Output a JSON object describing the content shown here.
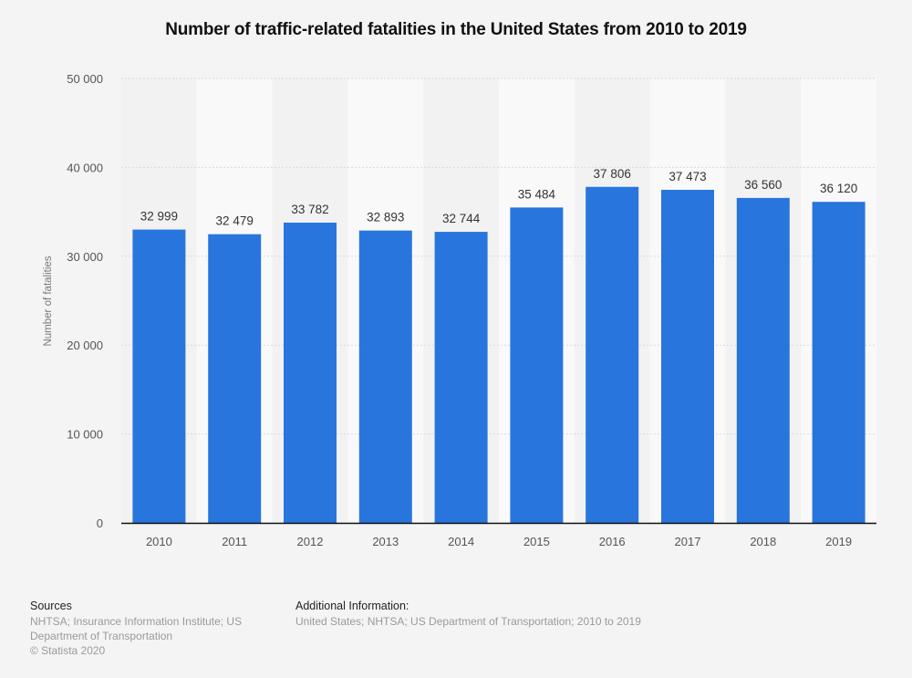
{
  "chart_data": {
    "type": "bar",
    "title": "Number of traffic-related fatalities in the United States from 2010 to 2019",
    "xlabel": "",
    "ylabel": "Number of fatalities",
    "categories": [
      "2010",
      "2011",
      "2012",
      "2013",
      "2014",
      "2015",
      "2016",
      "2017",
      "2018",
      "2019"
    ],
    "values": [
      32999,
      32479,
      33782,
      32893,
      32744,
      35484,
      37806,
      37473,
      36560,
      36120
    ],
    "data_labels": [
      "32 999",
      "32 479",
      "33 782",
      "32 893",
      "32 744",
      "35 484",
      "37 806",
      "37 473",
      "36 560",
      "36 120"
    ],
    "ylim": [
      0,
      50000
    ],
    "yticks": [
      0,
      10000,
      20000,
      30000,
      40000,
      50000
    ],
    "ytick_labels": [
      "0",
      "10 000",
      "20 000",
      "30 000",
      "40 000",
      "50 000"
    ],
    "grid": true,
    "legend": "none",
    "bar_color": "#2876dd",
    "alt_band_colors": [
      "#f2f2f2",
      "#f9f9f9"
    ]
  },
  "footer": {
    "sources_heading": "Sources",
    "sources_lines": [
      "NHTSA; Insurance Information Institute; US",
      "Department of Transportation"
    ],
    "copyright": "© Statista 2020",
    "additional_heading": "Additional Information:",
    "additional_text": "United States; NHTSA; US Department of Transportation; 2010 to 2019"
  }
}
